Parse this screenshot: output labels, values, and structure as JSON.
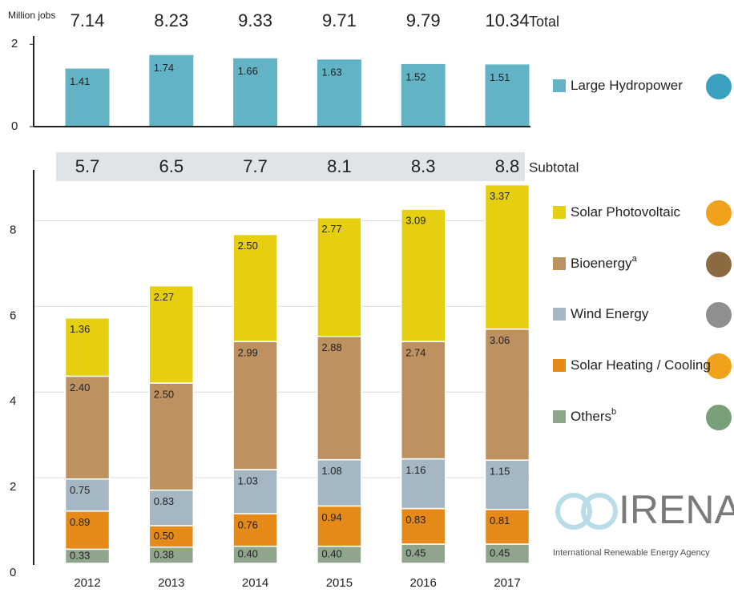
{
  "chart_data": [
    {
      "type": "bar",
      "ylabel": "Million jobs",
      "ylim": [
        0,
        2.2
      ],
      "yticks": [
        0,
        2
      ],
      "grid": false,
      "totals": [
        7.14,
        8.23,
        9.33,
        9.71,
        9.79,
        10.34
      ],
      "totals_label": "Total",
      "series": [
        {
          "name": "Large Hydropower",
          "color": "#63b3c6",
          "values": [
            1.41,
            1.74,
            1.66,
            1.63,
            1.52,
            1.51
          ]
        }
      ]
    },
    {
      "type": "stacked_bar",
      "ylim": [
        0,
        9
      ],
      "yticks": [
        0,
        2,
        4,
        6,
        8
      ],
      "grid": true,
      "categories": [
        "2012",
        "2013",
        "2014",
        "2015",
        "2016",
        "2017"
      ],
      "subtotals": [
        5.7,
        6.5,
        7.7,
        8.1,
        8.3,
        8.8
      ],
      "subtotals_label": "Subtotal",
      "series": [
        {
          "name": "Others",
          "note": "b",
          "color": "#8fa68c",
          "values": [
            0.33,
            0.38,
            0.4,
            0.4,
            0.45,
            0.45
          ],
          "value_labels": [
            "0.33",
            "0.38",
            "0.40",
            "0.40",
            "0.45",
            "0.45"
          ]
        },
        {
          "name": "Solar Heating / Cooling",
          "color": "#e58a18",
          "values": [
            0.89,
            0.5,
            0.76,
            0.94,
            0.83,
            0.81
          ],
          "value_labels": [
            "0.89",
            "0.50",
            "0.76",
            "0.94",
            "0.83",
            "0.81"
          ]
        },
        {
          "name": "Wind Energy",
          "color": "#a5b7c3",
          "values": [
            0.75,
            0.83,
            1.03,
            1.08,
            1.16,
            1.15
          ],
          "value_labels": [
            "0.75",
            "0.83",
            "1.03",
            "1.08",
            "1.16",
            "1.15"
          ]
        },
        {
          "name": "Bioenergy",
          "note": "a",
          "color": "#bd9260",
          "values": [
            2.4,
            2.5,
            2.99,
            2.88,
            2.74,
            3.06
          ],
          "value_labels": [
            "2.40",
            "2.50",
            "2.99",
            "2.88",
            "2.74",
            "3.06"
          ]
        },
        {
          "name": "Solar Photovoltaic",
          "color": "#e5cf10",
          "values": [
            1.36,
            2.27,
            2.5,
            2.77,
            3.09,
            3.37
          ],
          "value_labels": [
            "1.36",
            "2.27",
            "2.50",
            "2.77",
            "3.09",
            "3.37"
          ]
        }
      ]
    },
    {
      "type": "watermark",
      "title": "IRENA",
      "subtitle": "International Renewable Energy Agency"
    }
  ]
}
